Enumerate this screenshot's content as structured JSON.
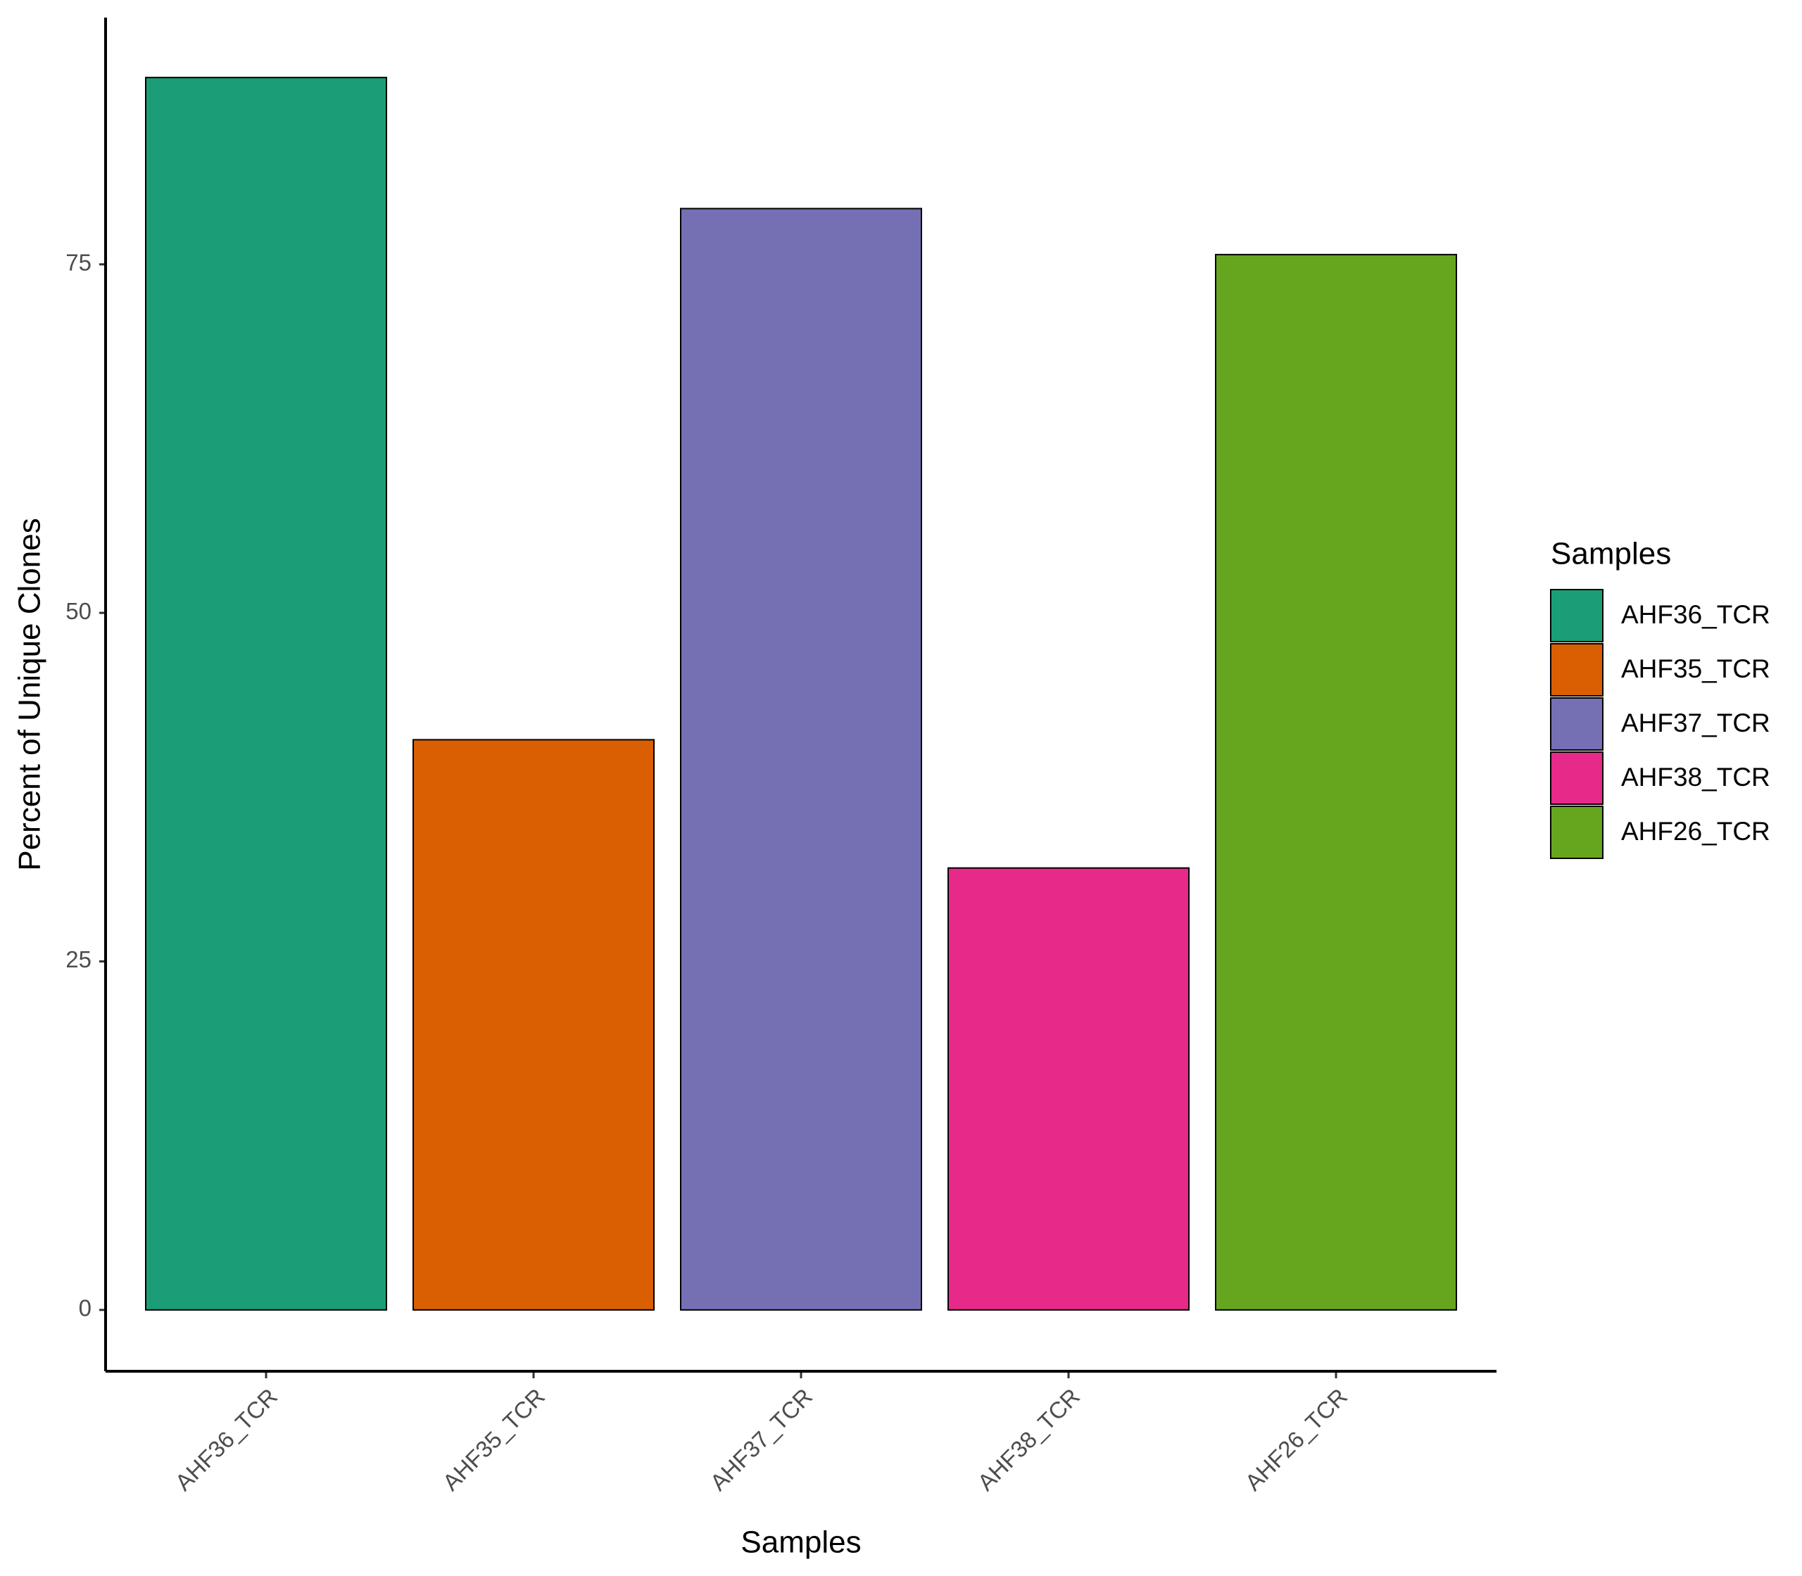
{
  "chart_data": {
    "type": "bar",
    "x_label": "Samples",
    "y_label": "Percent of Unique Clones",
    "categories": [
      "AHF36_TCR",
      "AHF35_TCR",
      "AHF37_TCR",
      "AHF38_TCR",
      "AHF26_TCR"
    ],
    "values": [
      88.4,
      40.9,
      79.0,
      31.7,
      75.7
    ],
    "colors": [
      "#1b9e77",
      "#d95f02",
      "#7570b3",
      "#e7298a",
      "#66a61e"
    ],
    "ylim": [
      -4.4,
      92.7
    ],
    "yticks": [
      0,
      25,
      50,
      75
    ],
    "grid": false,
    "legend_title": "Samples",
    "legend_position": "right"
  }
}
